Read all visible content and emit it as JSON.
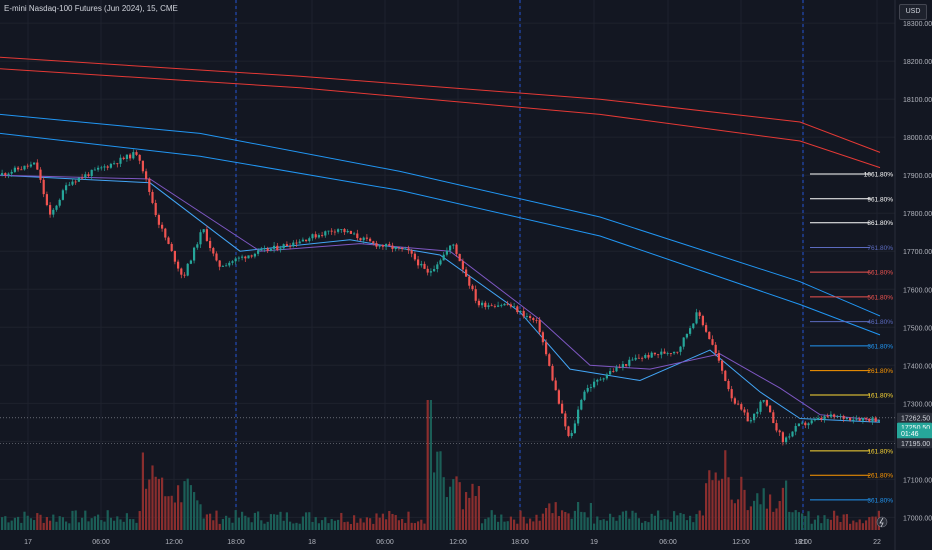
{
  "header": {
    "title": "E-mini Nasdaq-100 Futures (Jun 2024), 15, CME",
    "currency_button": "USD"
  },
  "colors": {
    "background": "#131722",
    "grid": "#1e222d",
    "axis_text": "#b2b5be",
    "up": "#26a69a",
    "down": "#ef5350",
    "volume_up": "#1b5e57",
    "volume_down": "#8a2e2e",
    "ma_red": "#e53935",
    "ma_blue": "#2196f3",
    "ma_fast_blue": "#42a5f5",
    "ma_purple": "#7e57c2",
    "session_line": "#2962ff"
  },
  "chart_data": {
    "type": "candlestick",
    "instrument": "E-mini Nasdaq-100 Futures (Jun 2024)",
    "timeframe": "15",
    "exchange": "CME",
    "ylim": [
      16980,
      18360
    ],
    "y_ticks": [
      17000,
      17100,
      17200,
      17300,
      17400,
      17500,
      17600,
      17700,
      17800,
      17900,
      18000,
      18100,
      18200,
      18300
    ],
    "y_tick_labels": [
      "17000.00",
      "17100.00",
      "17200.00",
      "17300.00",
      "17400.00",
      "17500.00",
      "17600.00",
      "17700.00",
      "17800.00",
      "17900.00",
      "18000.00",
      "18100.00",
      "18200.00",
      "18300.00"
    ],
    "x_ticks": [
      "17",
      "06:00",
      "12:00",
      "18:00",
      "18",
      "06:00",
      "12:00",
      "18:00",
      "19",
      "06:00",
      "12:00",
      "18:00",
      "21",
      "22"
    ],
    "price_path": [
      [
        0,
        17900
      ],
      [
        38,
        17930
      ],
      [
        52,
        17790
      ],
      [
        70,
        17880
      ],
      [
        105,
        17920
      ],
      [
        140,
        17960
      ],
      [
        160,
        17780
      ],
      [
        185,
        17630
      ],
      [
        205,
        17760
      ],
      [
        220,
        17660
      ],
      [
        250,
        17690
      ],
      [
        280,
        17710
      ],
      [
        340,
        17760
      ],
      [
        375,
        17720
      ],
      [
        410,
        17700
      ],
      [
        430,
        17640
      ],
      [
        455,
        17720
      ],
      [
        480,
        17560
      ],
      [
        510,
        17560
      ],
      [
        540,
        17510
      ],
      [
        565,
        17260
      ],
      [
        572,
        17200
      ],
      [
        585,
        17330
      ],
      [
        610,
        17380
      ],
      [
        640,
        17420
      ],
      [
        680,
        17440
      ],
      [
        700,
        17540
      ],
      [
        715,
        17450
      ],
      [
        735,
        17310
      ],
      [
        752,
        17250
      ],
      [
        765,
        17310
      ],
      [
        785,
        17200
      ],
      [
        800,
        17240
      ],
      [
        830,
        17265
      ],
      [
        880,
        17258
      ]
    ],
    "moving_averages": [
      {
        "color": "red",
        "points": [
          [
            0,
            18210
          ],
          [
            300,
            18160
          ],
          [
            600,
            18100
          ],
          [
            800,
            18040
          ],
          [
            880,
            17960
          ]
        ]
      },
      {
        "color": "red",
        "points": [
          [
            0,
            18180
          ],
          [
            300,
            18130
          ],
          [
            600,
            18060
          ],
          [
            800,
            17990
          ],
          [
            880,
            17920
          ]
        ]
      },
      {
        "color": "blue",
        "points": [
          [
            0,
            18060
          ],
          [
            200,
            18010
          ],
          [
            400,
            17910
          ],
          [
            600,
            17790
          ],
          [
            800,
            17620
          ],
          [
            880,
            17530
          ]
        ]
      },
      {
        "color": "blue",
        "points": [
          [
            0,
            18010
          ],
          [
            200,
            17950
          ],
          [
            400,
            17860
          ],
          [
            600,
            17740
          ],
          [
            800,
            17560
          ],
          [
            880,
            17480
          ]
        ]
      },
      {
        "color": "fast_blue",
        "points": [
          [
            0,
            17900
          ],
          [
            150,
            17880
          ],
          [
            240,
            17700
          ],
          [
            350,
            17730
          ],
          [
            440,
            17690
          ],
          [
            520,
            17540
          ],
          [
            570,
            17390
          ],
          [
            640,
            17360
          ],
          [
            710,
            17440
          ],
          [
            760,
            17330
          ],
          [
            800,
            17260
          ],
          [
            880,
            17250
          ]
        ]
      },
      {
        "color": "purple",
        "points": [
          [
            0,
            17900
          ],
          [
            150,
            17890
          ],
          [
            260,
            17700
          ],
          [
            360,
            17720
          ],
          [
            450,
            17700
          ],
          [
            540,
            17520
          ],
          [
            590,
            17400
          ],
          [
            650,
            17390
          ],
          [
            720,
            17430
          ],
          [
            780,
            17340
          ],
          [
            820,
            17270
          ],
          [
            880,
            17255
          ]
        ]
      }
    ],
    "fib_levels": [
      {
        "label": "1061.80%",
        "value": 17903,
        "color": "#ffffff"
      },
      {
        "label": "961.80%",
        "value": 17838,
        "color": "#ffffff"
      },
      {
        "label": "861.80%",
        "value": 17775,
        "color": "#ffffff"
      },
      {
        "label": "761.80%",
        "value": 17710,
        "color": "#5c6bc0"
      },
      {
        "label": "661.80%",
        "value": 17645,
        "color": "#ef5350"
      },
      {
        "label": "561.80%",
        "value": 17580,
        "color": "#ef5350"
      },
      {
        "label": "461.80%",
        "value": 17515,
        "color": "#5c6bc0"
      },
      {
        "label": "361.80%",
        "value": 17451,
        "color": "#2196f3"
      },
      {
        "label": "261.80%",
        "value": 17386,
        "color": "#ff9800"
      },
      {
        "label": "161.80%",
        "value": 17322,
        "color": "#fdd835"
      },
      {
        "label": "161.80%",
        "value": 17175,
        "color": "#fdd835"
      },
      {
        "label": "261.80%",
        "value": 17111,
        "color": "#ff9800"
      },
      {
        "label": "361.80%",
        "value": 17046,
        "color": "#2196f3"
      }
    ],
    "price_labels": [
      {
        "label": "17262.50",
        "value": 17262,
        "bg": "#2a2e39",
        "fg": "#d1d4dc"
      },
      {
        "label": "17250.50",
        "value": 17236,
        "bg": "#26a69a",
        "fg": "#ffffff"
      },
      {
        "label": "01:46",
        "value": 17220,
        "bg": "#26a69a",
        "fg": "#ffffff"
      },
      {
        "label": "17195.00",
        "value": 17195,
        "bg": "#2a2e39",
        "fg": "#d1d4dc"
      }
    ],
    "volume_note": "volume histogram at bottom, relative heights"
  }
}
